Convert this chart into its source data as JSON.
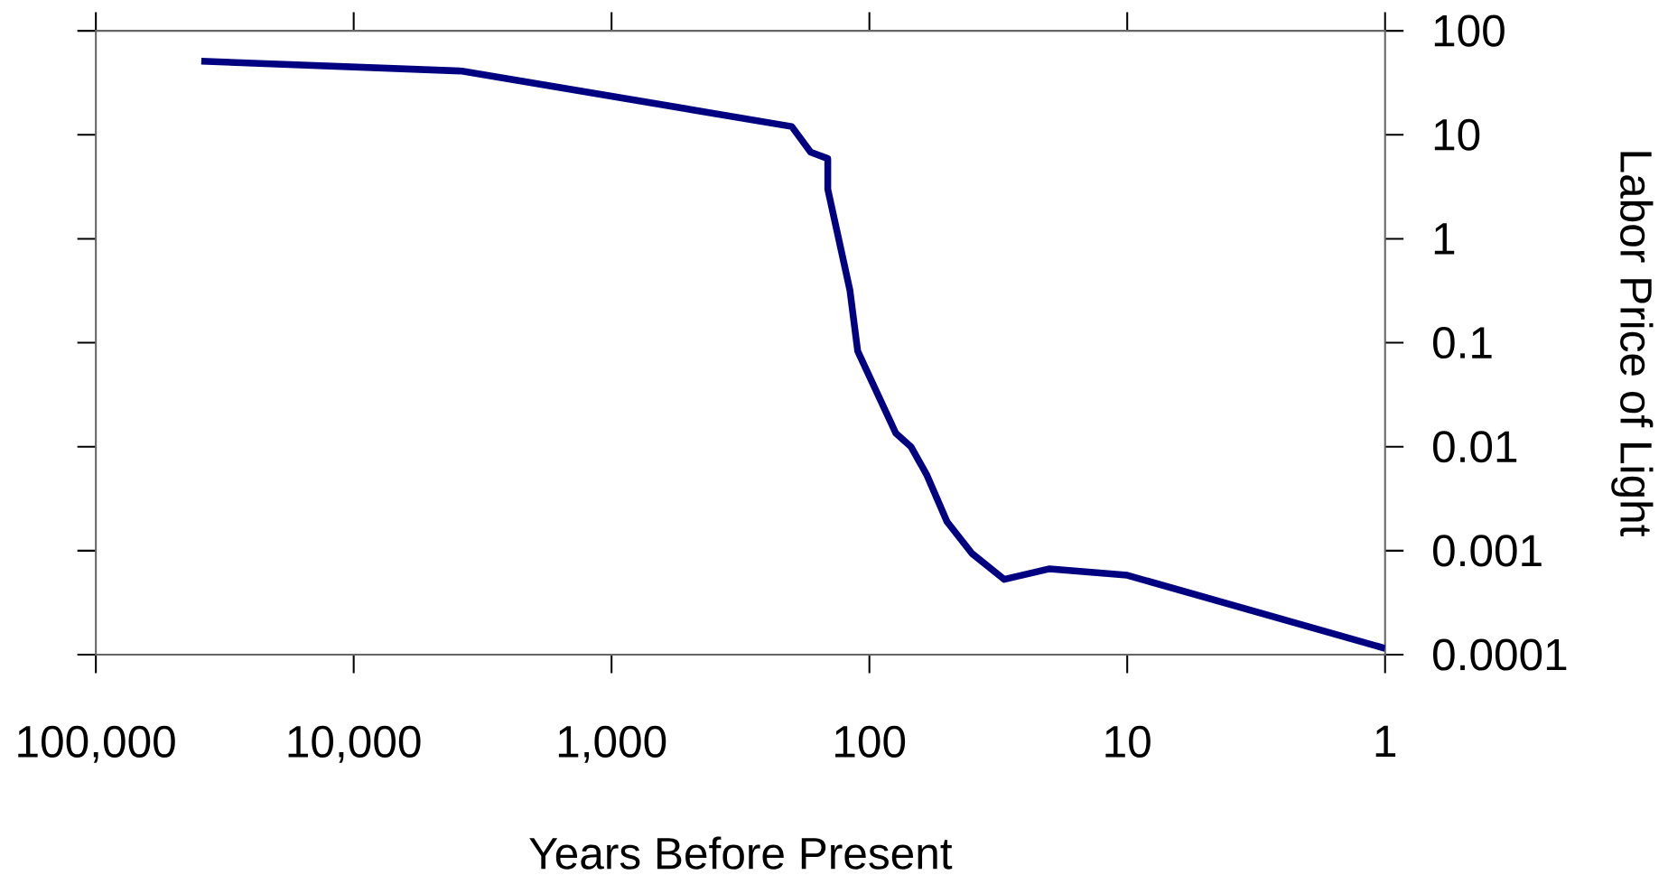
{
  "chart_data": {
    "type": "line",
    "xlabel": "Years Before Present",
    "ylabel": "Labor Price of Light",
    "log": "xy",
    "grid": false,
    "marker": "none",
    "line_style": "solid",
    "x": [
      39000,
      3800,
      200,
      169,
      145,
      145,
      119,
      111,
      79,
      69,
      60,
      50,
      40,
      30,
      20,
      10,
      1
    ],
    "series": [
      {
        "color": "#000080",
        "values": [
          51,
          41,
          12,
          6.8,
          5.9,
          3.0,
          0.32,
          0.083,
          0.0135,
          0.01,
          0.0054,
          0.0019,
          0.00094,
          0.00053,
          0.00067,
          0.00058,
          0.000115
        ]
      }
    ],
    "xlim": [
      100000,
      1
    ],
    "ylim": [
      0.0001,
      100
    ],
    "xticks": [
      {
        "value": 100000,
        "label": "100,000"
      },
      {
        "value": 10000,
        "label": "10,000"
      },
      {
        "value": 1000,
        "label": "1,000"
      },
      100,
      10,
      1
    ],
    "yticks": [
      0.0001,
      0.001,
      0.01,
      0.1,
      1,
      10,
      100
    ]
  }
}
